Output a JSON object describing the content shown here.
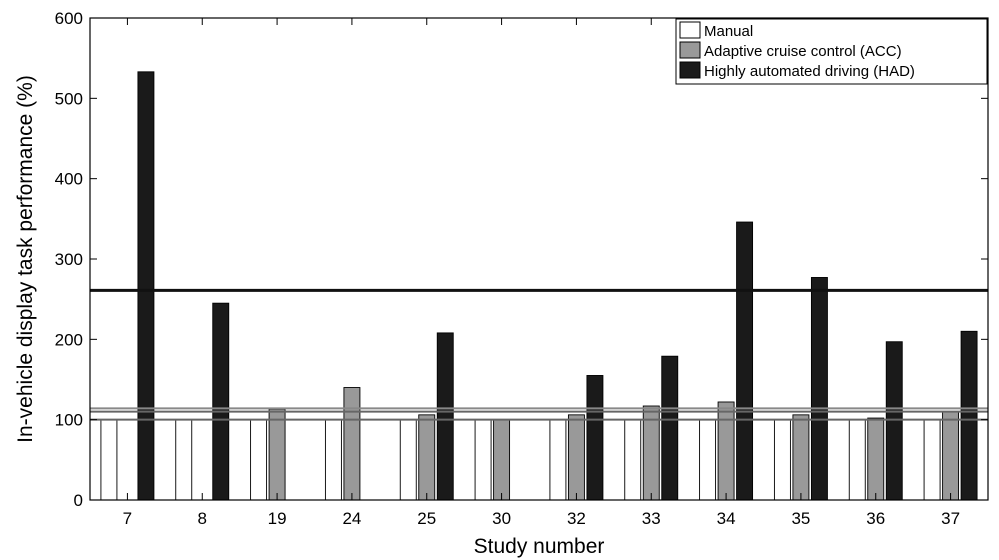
{
  "chart_data": {
    "type": "bar",
    "categories": [
      "7",
      "8",
      "19",
      "24",
      "25",
      "30",
      "32",
      "33",
      "34",
      "35",
      "36",
      "37"
    ],
    "series": [
      {
        "name": "Manual",
        "color": "#ffffff",
        "values": [
          100,
          100,
          100,
          100,
          100,
          100,
          100,
          100,
          100,
          100,
          100,
          100
        ]
      },
      {
        "name": "Adaptive cruise control (ACC)",
        "color": "#999999",
        "values": [
          null,
          null,
          113,
          140,
          106,
          100,
          106,
          117,
          122,
          106,
          102,
          110
        ]
      },
      {
        "name": "Highly automated driving (HAD)",
        "color": "#1a1a1a",
        "values": [
          533,
          245,
          null,
          null,
          208,
          null,
          155,
          179,
          346,
          277,
          197,
          210
        ]
      }
    ],
    "reference_lines": [
      {
        "value": 100,
        "color": "#666666"
      },
      {
        "value": 110,
        "color": "#666666"
      },
      {
        "value": 114,
        "color": "#888888"
      },
      {
        "value": 261,
        "color": "#111111"
      }
    ],
    "xlabel": "Study number",
    "ylabel": "In-vehicle display task performance (%)",
    "ylim": [
      0,
      600
    ],
    "yticks": [
      0,
      100,
      200,
      300,
      400,
      500,
      600
    ],
    "legend_position": "top-right",
    "grid": false
  }
}
